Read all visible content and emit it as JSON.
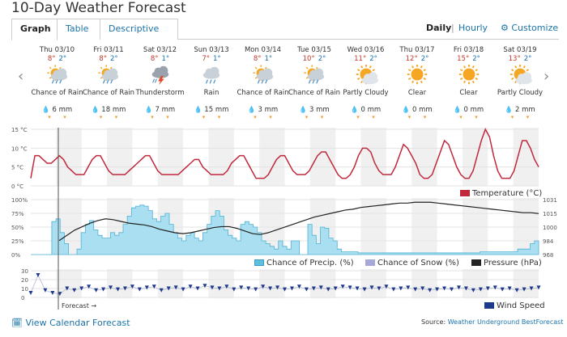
{
  "page": {
    "title": "10-Day Weather Forecast"
  },
  "tabs": [
    {
      "label": "Graph",
      "active": true
    },
    {
      "label": "Table",
      "active": false
    },
    {
      "label": "Descriptive",
      "active": false
    }
  ],
  "view": {
    "daily": "Daily",
    "separator": "|",
    "hourly": "Hourly",
    "customize": "Customize",
    "customize_icon": "gear-icon"
  },
  "nav": {
    "prev": "‹",
    "next": "›"
  },
  "days": [
    {
      "date": "Thu 03/10",
      "hi": "8°",
      "lo": "2°",
      "icon": "chancerain",
      "cond": "Chance of Rain",
      "precip": "6 mm",
      "drop": "blue"
    },
    {
      "date": "Fri 03/11",
      "hi": "8°",
      "lo": "2°",
      "icon": "chancerain",
      "cond": "Chance of Rain",
      "precip": "18 mm",
      "drop": "blue"
    },
    {
      "date": "Sat 03/12",
      "hi": "8°",
      "lo": "1°",
      "icon": "tstorm",
      "cond": "Thunderstorm",
      "precip": "7 mm",
      "drop": "blue"
    },
    {
      "date": "Sun 03/13",
      "hi": "7°",
      "lo": "1°",
      "icon": "rain",
      "cond": "Rain",
      "precip": "15 mm",
      "drop": "blue"
    },
    {
      "date": "Mon 03/14",
      "hi": "8°",
      "lo": "1°",
      "icon": "chancerain",
      "cond": "Chance of Rain",
      "precip": "3 mm",
      "drop": "blue"
    },
    {
      "date": "Tue 03/15",
      "hi": "10°",
      "lo": "2°",
      "icon": "chancerain",
      "cond": "Chance of Rain",
      "precip": "3 mm",
      "drop": "blue"
    },
    {
      "date": "Wed 03/16",
      "hi": "11°",
      "lo": "2°",
      "icon": "partlycloudy",
      "cond": "Partly Cloudy",
      "precip": "0 mm",
      "drop": "gray"
    },
    {
      "date": "Thu 03/17",
      "hi": "12°",
      "lo": "2°",
      "icon": "clear",
      "cond": "Clear",
      "precip": "0 mm",
      "drop": "gray"
    },
    {
      "date": "Fri 03/18",
      "hi": "15°",
      "lo": "2°",
      "icon": "clear",
      "cond": "Clear",
      "precip": "0 mm",
      "drop": "gray"
    },
    {
      "date": "Sat 03/19",
      "hi": "13°",
      "lo": "2°",
      "icon": "partlycloudy",
      "cond": "Partly Cloudy",
      "precip": "2 mm",
      "drop": "blue"
    }
  ],
  "drop_glyph": "💧",
  "wx_glyph": "▾",
  "chart_data": [
    {
      "type": "line",
      "title": "",
      "ylabel": "°C",
      "yticks": [
        "15 °C",
        "10 °C",
        "5 °C",
        "0 °C"
      ],
      "ylim": [
        0,
        15
      ],
      "series": [
        {
          "name": "Temperature (°C)",
          "color": "#c0283c",
          "values": [
            2,
            8,
            8,
            7,
            6,
            6,
            7,
            8,
            7,
            5,
            4,
            3,
            3,
            3,
            5,
            7,
            8,
            8,
            6,
            4,
            3,
            3,
            3,
            3,
            4,
            5,
            6,
            7,
            8,
            8,
            6,
            4,
            3,
            3,
            3,
            3,
            3,
            4,
            5,
            6,
            7,
            7,
            5,
            4,
            3,
            3,
            3,
            3,
            4,
            6,
            7,
            8,
            8,
            6,
            4,
            2,
            2,
            2,
            3,
            5,
            7,
            8,
            8,
            6,
            4,
            3,
            3,
            3,
            4,
            6,
            8,
            9,
            9,
            7,
            5,
            3,
            2,
            2,
            3,
            5,
            8,
            10,
            10,
            9,
            6,
            4,
            3,
            3,
            3,
            5,
            8,
            11,
            10,
            8,
            6,
            3,
            2,
            2,
            3,
            6,
            9,
            12,
            11,
            8,
            5,
            3,
            2,
            2,
            4,
            8,
            12,
            15,
            13,
            8,
            4,
            2,
            2,
            2,
            4,
            8,
            12,
            12,
            10,
            7,
            5
          ]
        }
      ]
    },
    {
      "type": "area",
      "title": "",
      "yticks_left": [
        "100%",
        "75%",
        "50%",
        "25%",
        "0%"
      ],
      "yticks_right": [
        "1031",
        "1015",
        "1000",
        "984",
        "968"
      ],
      "series": [
        {
          "name": "Chance of Precip. (%)",
          "color": "#5bc0de",
          "values": [
            0,
            0,
            0,
            0,
            0,
            60,
            65,
            40,
            20,
            0,
            0,
            10,
            40,
            55,
            62,
            45,
            35,
            30,
            30,
            40,
            35,
            40,
            55,
            70,
            85,
            88,
            90,
            88,
            80,
            65,
            60,
            70,
            75,
            55,
            40,
            30,
            25,
            35,
            40,
            30,
            25,
            40,
            55,
            70,
            80,
            70,
            45,
            35,
            30,
            25,
            55,
            60,
            55,
            50,
            40,
            25,
            20,
            15,
            10,
            25,
            15,
            10,
            25,
            25,
            0,
            0,
            55,
            35,
            20,
            50,
            48,
            30,
            25,
            10,
            5,
            5,
            5,
            5,
            3,
            3,
            3,
            3,
            3,
            3,
            3,
            3,
            3,
            3,
            3,
            3,
            3,
            3,
            3,
            3,
            3,
            3,
            3,
            3,
            3,
            3,
            3,
            3,
            3,
            3,
            3,
            3,
            3,
            5,
            5,
            5,
            5,
            5,
            5,
            5,
            5,
            5,
            10,
            10,
            10,
            20,
            25
          ]
        },
        {
          "name": "Chance of Snow (%)",
          "color": "#a8a8d8",
          "values": []
        },
        {
          "name": "Pressure (hPa)",
          "color": "#222222",
          "ylim": [
            968,
            1031
          ],
          "values": [
            984,
            990,
            996,
            1000,
            1004,
            1007,
            1009,
            1008,
            1006,
            1004,
            1003,
            1002,
            1000,
            997,
            995,
            993,
            992,
            993,
            995,
            997,
            999,
            1000,
            1000,
            998,
            995,
            992,
            991,
            993,
            996,
            999,
            1002,
            1005,
            1008,
            1011,
            1013,
            1015,
            1017,
            1019,
            1020,
            1022,
            1023,
            1024,
            1025,
            1026,
            1027,
            1027,
            1028,
            1028,
            1028,
            1027,
            1026,
            1025,
            1024,
            1023,
            1022,
            1021,
            1020,
            1019,
            1018,
            1017,
            1016,
            1016,
            1015
          ]
        }
      ]
    },
    {
      "type": "line",
      "title": "",
      "yticks": [
        "30",
        "20",
        "10",
        "0"
      ],
      "ylim": [
        0,
        30
      ],
      "series": [
        {
          "name": "Wind Speed",
          "color": "#1f3a8a",
          "values": [
            5,
            25,
            8,
            5,
            4,
            10,
            8,
            10,
            12,
            8,
            9,
            11,
            9,
            10,
            12,
            9,
            11,
            12,
            8,
            10,
            11,
            9,
            12,
            10,
            13,
            11,
            10,
            12,
            9,
            11,
            10,
            9,
            12,
            10,
            11,
            9,
            10,
            12,
            9,
            10,
            11,
            9,
            10,
            12,
            11,
            10,
            9,
            11,
            10,
            12,
            9,
            10,
            11,
            9,
            10,
            8,
            9,
            10,
            9,
            11,
            10,
            8,
            9,
            10,
            11,
            9,
            10,
            8,
            9,
            10,
            11
          ]
        }
      ]
    }
  ],
  "labels": {
    "forecast": "Forecast →"
  },
  "footer": {
    "calendar_icon": "calendar-icon",
    "calendar": "View Calendar Forecast",
    "source_prefix": "Source:",
    "source_link": "Weather Underground BestForecast"
  }
}
